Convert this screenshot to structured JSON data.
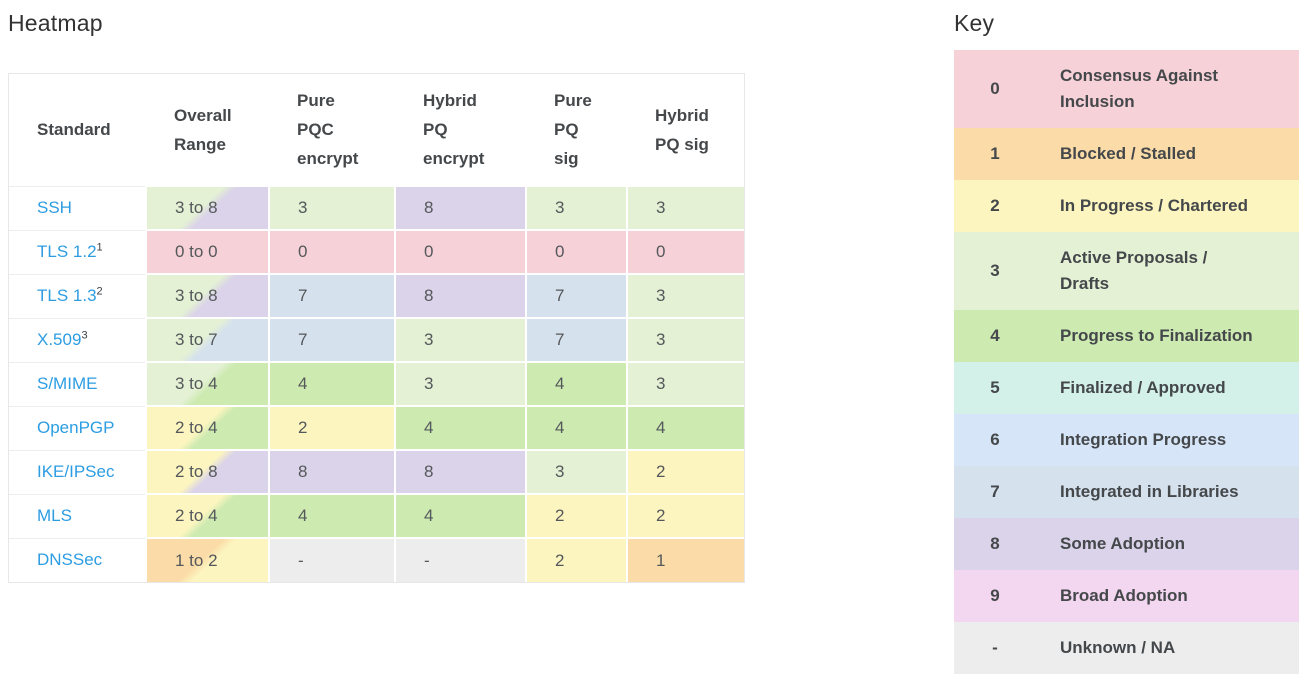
{
  "heatmap": {
    "title": "Heatmap",
    "columns": [
      {
        "id": "standard",
        "label": "Standard"
      },
      {
        "id": "overall-range",
        "label": "Overall\nRange"
      },
      {
        "id": "pure-pqc-encrypt",
        "label": "Pure\nPQC\nencrypt"
      },
      {
        "id": "hybrid-pq-encrypt",
        "label": "Hybrid\nPQ\nencrypt"
      },
      {
        "id": "pure-pq-sig",
        "label": "Pure\nPQ\nsig"
      },
      {
        "id": "hybrid-pq-sig",
        "label": "Hybrid\nPQ sig"
      }
    ],
    "rows": [
      {
        "id": "ssh",
        "standard": "SSH",
        "footnote": "",
        "range": {
          "text": "3 to 8",
          "min": "3",
          "max": "8"
        },
        "values": [
          "3",
          "8",
          "3",
          "3"
        ]
      },
      {
        "id": "tls-1-2",
        "standard": "TLS 1.2",
        "footnote": "1",
        "range": {
          "text": "0 to 0",
          "min": "0",
          "max": "0"
        },
        "values": [
          "0",
          "0",
          "0",
          "0"
        ]
      },
      {
        "id": "tls-1-3",
        "standard": "TLS 1.3",
        "footnote": "2",
        "range": {
          "text": "3 to 8",
          "min": "3",
          "max": "8"
        },
        "values": [
          "7",
          "8",
          "7",
          "3"
        ]
      },
      {
        "id": "x-509",
        "standard": "X.509",
        "footnote": "3",
        "range": {
          "text": "3 to 7",
          "min": "3",
          "max": "7"
        },
        "values": [
          "7",
          "3",
          "7",
          "3"
        ]
      },
      {
        "id": "s-mime",
        "standard": "S/MIME",
        "footnote": "",
        "range": {
          "text": "3 to 4",
          "min": "3",
          "max": "4"
        },
        "values": [
          "4",
          "3",
          "4",
          "3"
        ]
      },
      {
        "id": "openpgp",
        "standard": "OpenPGP",
        "footnote": "",
        "range": {
          "text": "2 to 4",
          "min": "2",
          "max": "4"
        },
        "values": [
          "2",
          "4",
          "4",
          "4"
        ]
      },
      {
        "id": "ike-ipsec",
        "standard": "IKE/IPSec",
        "footnote": "",
        "range": {
          "text": "2 to 8",
          "min": "2",
          "max": "8"
        },
        "values": [
          "8",
          "8",
          "3",
          "2"
        ]
      },
      {
        "id": "mls",
        "standard": "MLS",
        "footnote": "",
        "range": {
          "text": "2 to 4",
          "min": "2",
          "max": "4"
        },
        "values": [
          "4",
          "4",
          "2",
          "2"
        ]
      },
      {
        "id": "dnssec",
        "standard": "DNSSec",
        "footnote": "",
        "range": {
          "text": "1 to 2",
          "min": "1",
          "max": "2"
        },
        "values": [
          "-",
          "-",
          "2",
          "1"
        ]
      }
    ]
  },
  "key": {
    "title": "Key",
    "entries": [
      {
        "value": "0",
        "label": "Consensus Against\nInclusion"
      },
      {
        "value": "1",
        "label": "Blocked / Stalled"
      },
      {
        "value": "2",
        "label": "In Progress / Chartered"
      },
      {
        "value": "3",
        "label": "Active Proposals /\nDrafts"
      },
      {
        "value": "4",
        "label": "Progress to Finalization"
      },
      {
        "value": "5",
        "label": "Finalized / Approved"
      },
      {
        "value": "6",
        "label": "Integration Progress"
      },
      {
        "value": "7",
        "label": "Integrated in Libraries"
      },
      {
        "value": "8",
        "label": "Some Adoption"
      },
      {
        "value": "9",
        "label": "Broad Adoption"
      },
      {
        "value": "-",
        "label": "Unknown / NA"
      }
    ]
  },
  "colors": {
    "0": "#f6d1d7",
    "1": "#fbdca8",
    "2": "#fcf5bf",
    "3": "#e4f1d4",
    "4": "#cdeab1",
    "5": "#d3f0e9",
    "6": "#d6e6f8",
    "7": "#d5e1ed",
    "8": "#dad3e9",
    "9": "#f3d6ef",
    "-": "#ededed",
    "link": "#2d9de2",
    "text": "#55585b",
    "heading_text": "#45484b"
  },
  "chart_data": {
    "type": "heatmap",
    "title": "Heatmap",
    "row_labels": [
      "SSH",
      "TLS 1.2",
      "TLS 1.3",
      "X.509",
      "S/MIME",
      "OpenPGP",
      "IKE/IPSec",
      "MLS",
      "DNSSec"
    ],
    "column_labels": [
      "Overall Range",
      "Pure PQC encrypt",
      "Hybrid PQ encrypt",
      "Pure PQ sig",
      "Hybrid PQ sig"
    ],
    "overall_range": [
      [
        3,
        8
      ],
      [
        0,
        0
      ],
      [
        3,
        8
      ],
      [
        3,
        7
      ],
      [
        3,
        4
      ],
      [
        2,
        4
      ],
      [
        2,
        8
      ],
      [
        2,
        4
      ],
      [
        1,
        2
      ]
    ],
    "values": [
      [
        3,
        8,
        3,
        3
      ],
      [
        0,
        0,
        0,
        0
      ],
      [
        7,
        8,
        7,
        3
      ],
      [
        7,
        3,
        7,
        3
      ],
      [
        4,
        3,
        4,
        3
      ],
      [
        2,
        4,
        4,
        4
      ],
      [
        8,
        8,
        3,
        2
      ],
      [
        4,
        4,
        2,
        2
      ],
      [
        null,
        null,
        2,
        1
      ]
    ],
    "scale": [
      {
        "value": "0",
        "meaning": "Consensus Against Inclusion"
      },
      {
        "value": "1",
        "meaning": "Blocked / Stalled"
      },
      {
        "value": "2",
        "meaning": "In Progress / Chartered"
      },
      {
        "value": "3",
        "meaning": "Active Proposals / Drafts"
      },
      {
        "value": "4",
        "meaning": "Progress to Finalization"
      },
      {
        "value": "5",
        "meaning": "Finalized / Approved"
      },
      {
        "value": "6",
        "meaning": "Integration Progress"
      },
      {
        "value": "7",
        "meaning": "Integrated in Libraries"
      },
      {
        "value": "8",
        "meaning": "Some Adoption"
      },
      {
        "value": "9",
        "meaning": "Broad Adoption"
      },
      {
        "value": "-",
        "meaning": "Unknown / NA"
      }
    ],
    "legend_position": "right"
  }
}
